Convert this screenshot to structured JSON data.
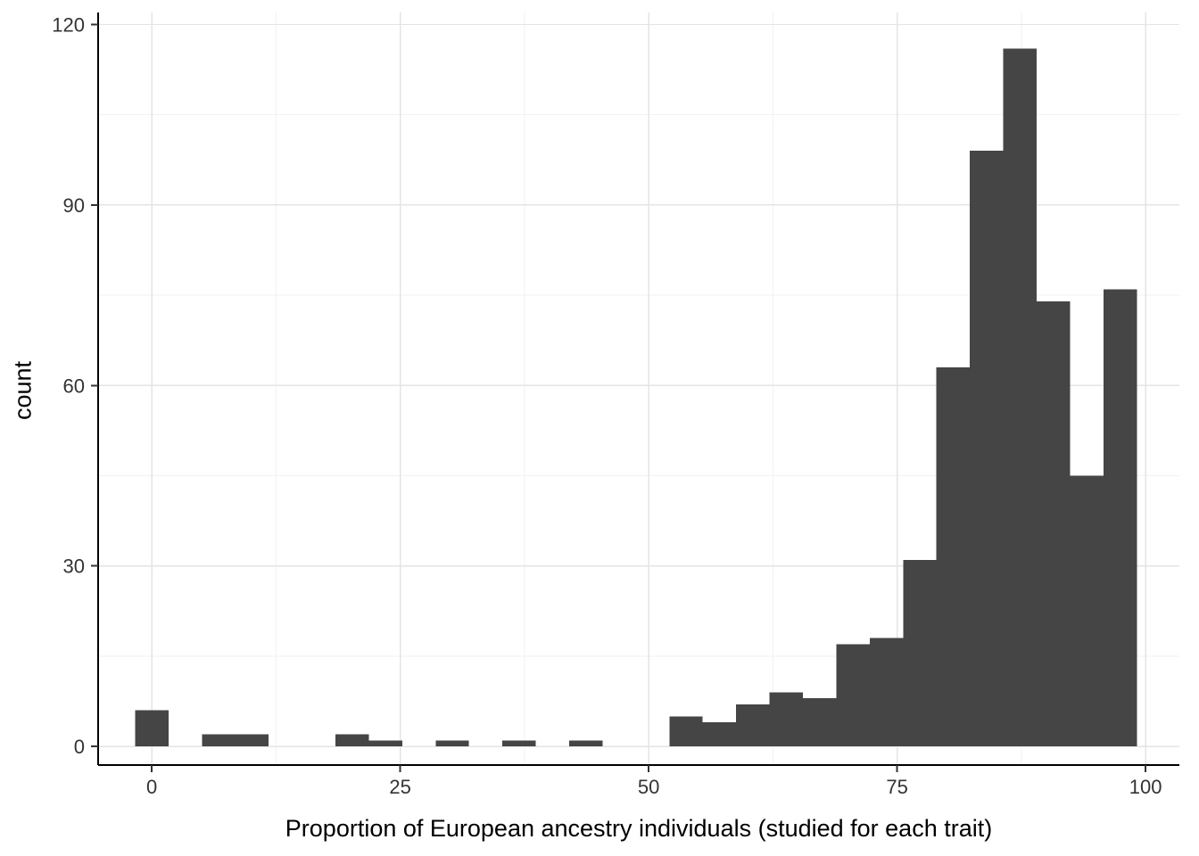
{
  "figure": {
    "background": "#FFFFFF"
  },
  "chart_data": {
    "type": "histogram",
    "title": "",
    "xlabel": "Proportion of European ancestry individuals (studied for each trait)",
    "ylabel": "count",
    "bin_start": -1.68,
    "binwidth": 3.36,
    "counts": [
      6,
      0,
      2,
      2,
      0,
      0,
      2,
      1,
      0,
      1,
      0,
      1,
      0,
      1,
      0,
      0,
      5,
      4,
      7,
      9,
      8,
      17,
      18,
      31,
      63,
      99,
      116,
      74,
      45,
      76
    ],
    "x_ticks": [
      0,
      25,
      50,
      75,
      100
    ],
    "y_ticks": [
      0,
      30,
      60,
      90,
      120
    ],
    "x_minor": [
      12.5,
      37.5,
      62.5,
      87.5
    ],
    "y_minor": [
      15,
      45,
      75,
      105
    ],
    "xlim": [
      -5.4,
      103.4
    ],
    "ylim": [
      -3.1,
      122.0
    ],
    "grid": true,
    "legend": "none",
    "colors": {
      "bar": "#454545",
      "grid_major": "#E4E4E4",
      "grid_minor": "#F2F2F2",
      "axis_line": "#000000",
      "tick_mark": "#333333",
      "tick_label": "#333333",
      "axis_title": "#000000",
      "background": "#FFFFFF"
    }
  }
}
